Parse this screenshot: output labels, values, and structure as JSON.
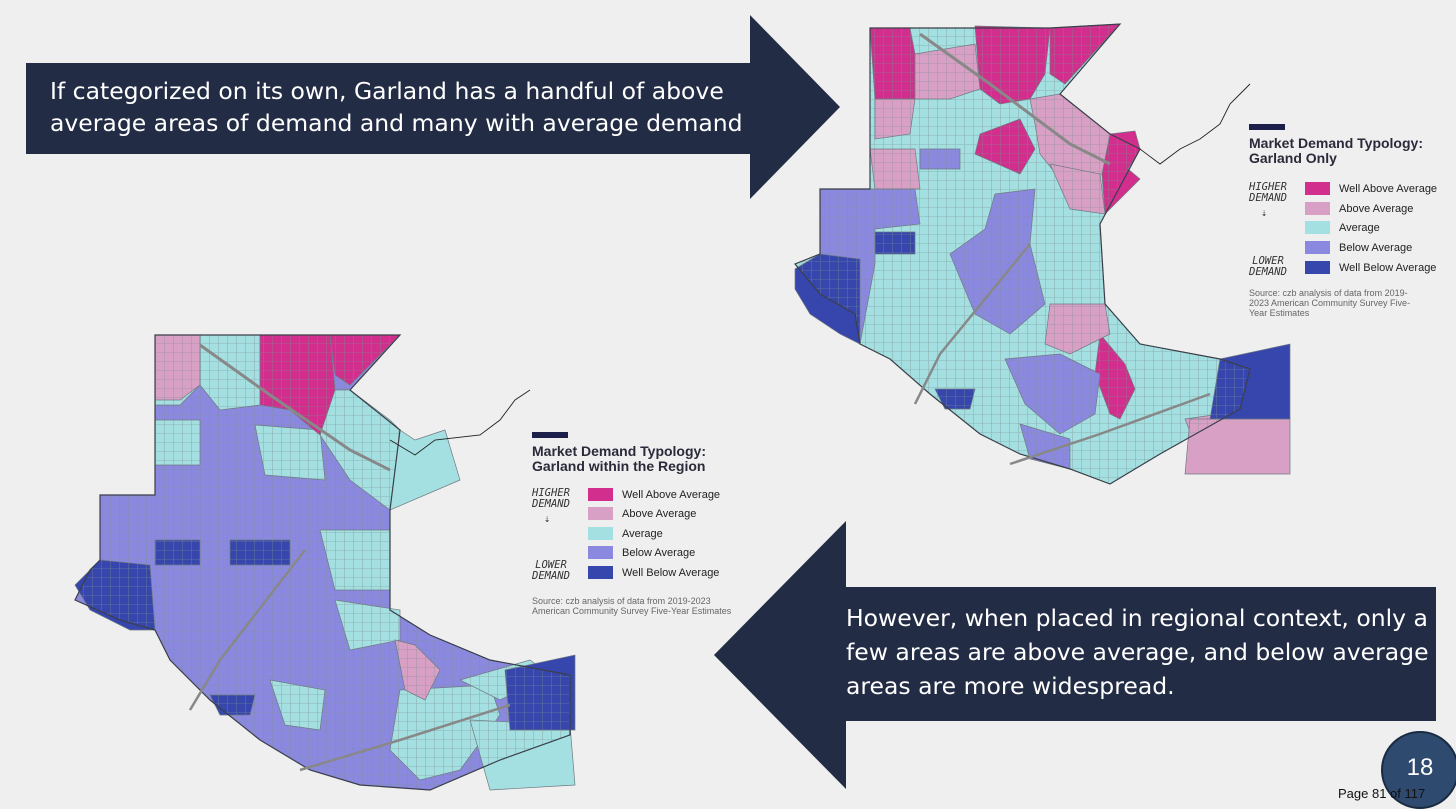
{
  "top_callout": "If categorized on its own, Garland has a handful of above average areas of demand and many with average demand",
  "bottom_callout": "However, when placed in regional context, only a few areas are above average, and below average areas are more widespread.",
  "legend_right": {
    "title_line1": "Market Demand Typology:",
    "title_line2": "Garland Only",
    "source_lines": [
      "Source: czb analysis of data from 2019-",
      "2023 American Community Survey Five-",
      "Year Estimates"
    ]
  },
  "legend_left": {
    "title_line1": "Market Demand Typology:",
    "title_line2": "Garland within the Region",
    "source_lines": [
      "Source: czb analysis of data from 2019-2023",
      "American Community Survey Five-Year Estimates"
    ]
  },
  "scale": {
    "higher": [
      "HIGHER",
      "DEMAND"
    ],
    "lower": [
      "LOWER",
      "DEMAND"
    ]
  },
  "categories": [
    {
      "label": "Well Above Average",
      "color": "#d12e8d"
    },
    {
      "label": "Above Average",
      "color": "#d9a0c6"
    },
    {
      "label": "Average",
      "color": "#a4e0e1"
    },
    {
      "label": "Below Average",
      "color": "#8b88e0"
    },
    {
      "label": "Well Below Average",
      "color": "#3646ad"
    }
  ],
  "page_number": "18",
  "page_footer": "Page 81 of 117"
}
